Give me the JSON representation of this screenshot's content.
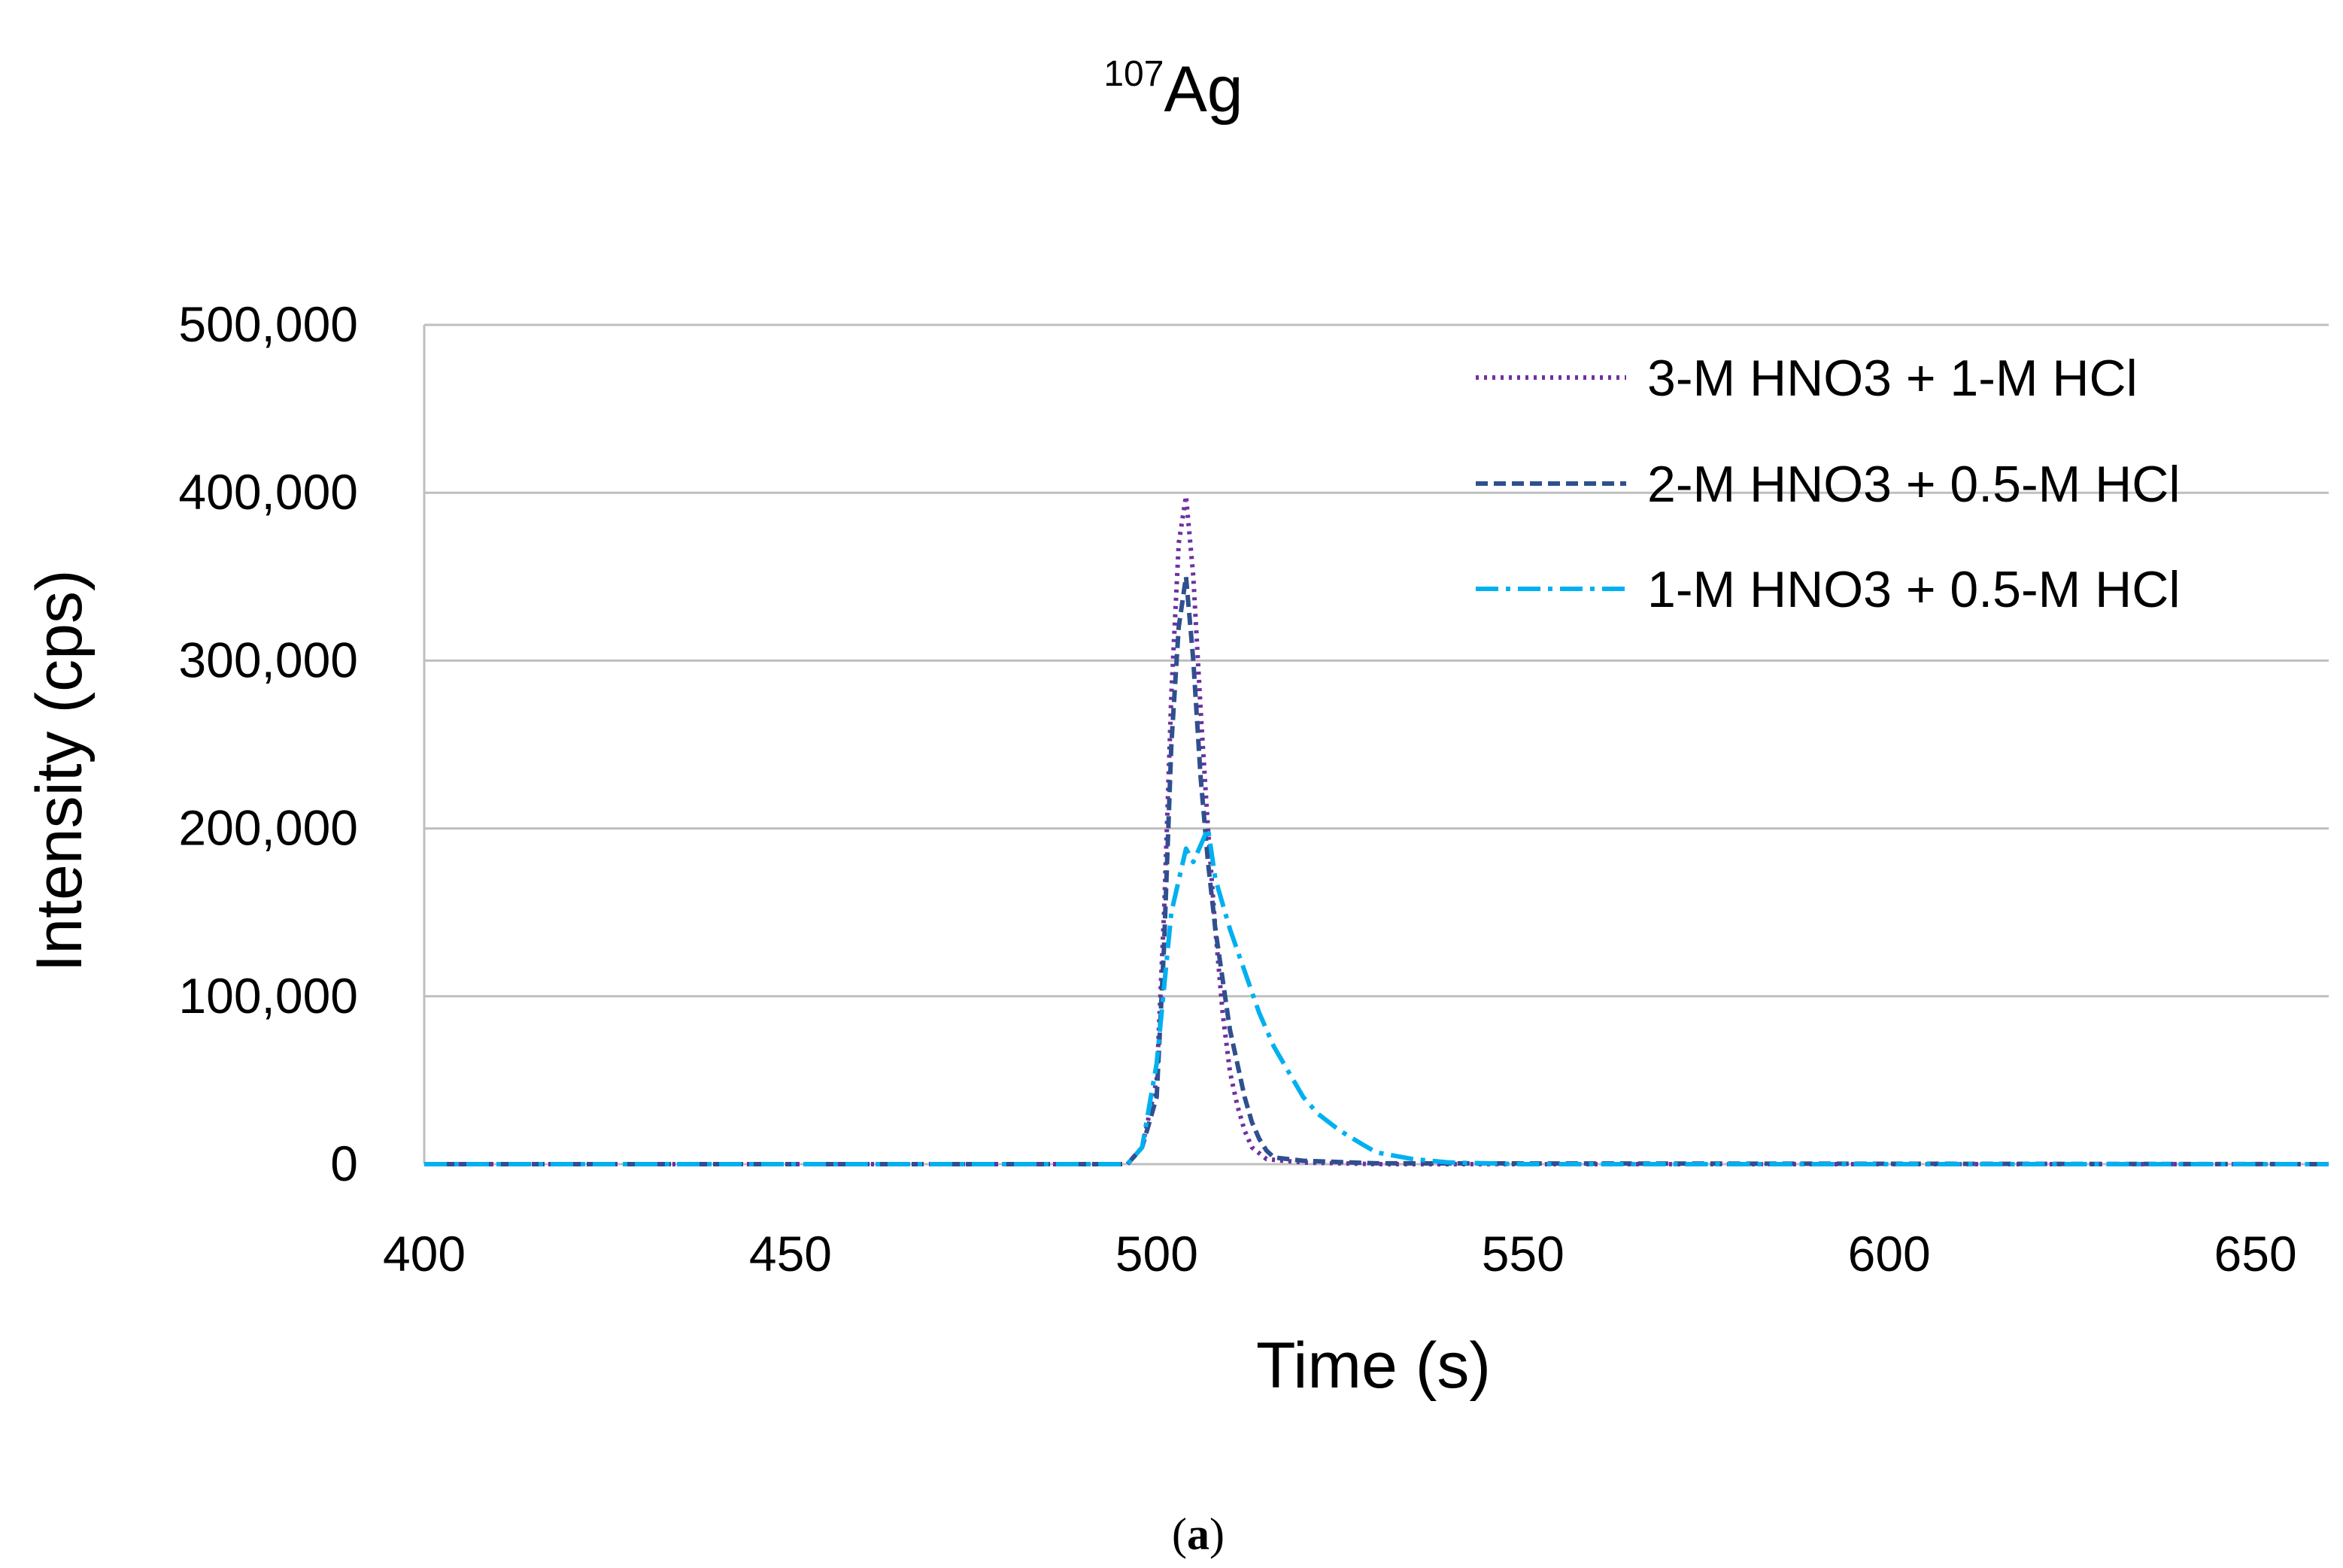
{
  "chart_data": {
    "type": "line",
    "title_superscript": "107",
    "title_main": "Ag",
    "xlabel": "Time (s)",
    "ylabel": "Intensity (cps)",
    "xlim": [
      400,
      660
    ],
    "ylim": [
      0,
      500000
    ],
    "x_ticks": [
      400,
      450,
      500,
      550,
      600,
      650
    ],
    "x_tick_labels": [
      "400",
      "450",
      "500",
      "550",
      "600",
      "650"
    ],
    "y_ticks": [
      0,
      100000,
      200000,
      300000,
      400000,
      500000
    ],
    "y_tick_labels": [
      "0",
      "100,000",
      "200,000",
      "300,000",
      "400,000",
      "500,000"
    ],
    "grid": "horizontal",
    "legend_position": "top-right",
    "caption_open": "(",
    "caption_label": "a",
    "caption_close": ")",
    "series": [
      {
        "name": "3-M HNO3 + 1-M HCl",
        "color": "#7030A0",
        "style": "dotted",
        "x": [
          400,
          450,
          496,
          498,
          500,
          501,
          502,
          503,
          504,
          505,
          506,
          507,
          508,
          509,
          510,
          511,
          512,
          513,
          515,
          520,
          530,
          660
        ],
        "y": [
          0,
          0,
          0,
          10000,
          50000,
          150000,
          280000,
          370000,
          398000,
          350000,
          270000,
          200000,
          140000,
          90000,
          55000,
          35000,
          20000,
          10000,
          3000,
          1000,
          0,
          0
        ]
      },
      {
        "name": "2-M HNO3 + 0.5-M HCl",
        "color": "#2F4F8F",
        "style": "dashed",
        "x": [
          400,
          450,
          496,
          498,
          500,
          501,
          502,
          503,
          504,
          505,
          506,
          507,
          508,
          509,
          510,
          511,
          512,
          513,
          514,
          515,
          516,
          520,
          530,
          660
        ],
        "y": [
          0,
          0,
          0,
          10000,
          40000,
          130000,
          250000,
          320000,
          350000,
          300000,
          230000,
          180000,
          140000,
          110000,
          80000,
          60000,
          40000,
          25000,
          15000,
          8000,
          4000,
          2000,
          500,
          0
        ]
      },
      {
        "name": "1-M HNO3 + 0.5-M HCl",
        "color": "#00B0F0",
        "style": "dashdot",
        "x": [
          400,
          450,
          496,
          498,
          500,
          502,
          504,
          505,
          506,
          507,
          508,
          510,
          512,
          514,
          516,
          518,
          520,
          522,
          525,
          528,
          530,
          535,
          540,
          550,
          660
        ],
        "y": [
          0,
          0,
          0,
          10000,
          60000,
          150000,
          188000,
          180000,
          190000,
          200000,
          170000,
          140000,
          115000,
          90000,
          70000,
          55000,
          40000,
          30000,
          20000,
          12000,
          7000,
          3000,
          1000,
          0,
          0
        ]
      }
    ]
  }
}
